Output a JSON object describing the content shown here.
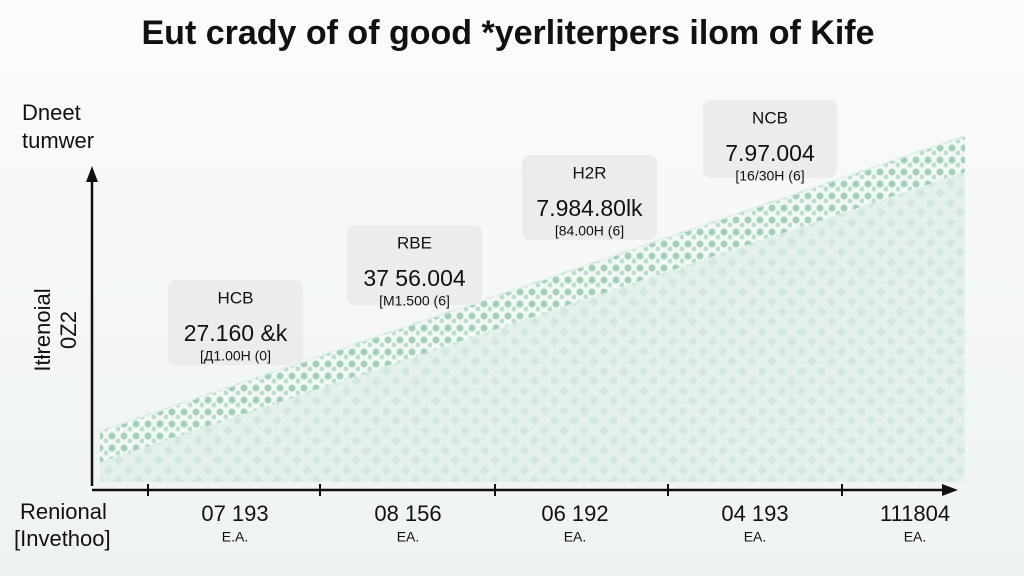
{
  "header": {
    "title": "Eut crady of of good *yerliterpers ilom of Kife"
  },
  "y_axis": {
    "label": [
      "Dneet",
      "tumwer"
    ],
    "rotated_label": [
      "Itƚrenoial",
      "0Z2"
    ]
  },
  "x_axis": {
    "label": [
      "Renional",
      "[Invethoo]"
    ],
    "ticks": [
      {
        "label": "07 193",
        "unit": "E.A."
      },
      {
        "label": "08 156",
        "unit": "EA."
      },
      {
        "label": "06 192",
        "unit": "EA."
      },
      {
        "label": "04 193",
        "unit": "EA."
      },
      {
        "label": "111804",
        "unit": "EA."
      }
    ]
  },
  "callouts": [
    {
      "code": "HCB",
      "value": "27.160 &k",
      "range": "[Д1.00Н (0]"
    },
    {
      "code": "RBE",
      "value": "37 56.004",
      "range": "[M1.500 (6]"
    },
    {
      "code": "H2R",
      "value": "7.984.80lk",
      "range": "[84.00H (6]"
    },
    {
      "code": "NCB",
      "value": "7.97.004",
      "range": "[16/30H (6]"
    }
  ]
}
